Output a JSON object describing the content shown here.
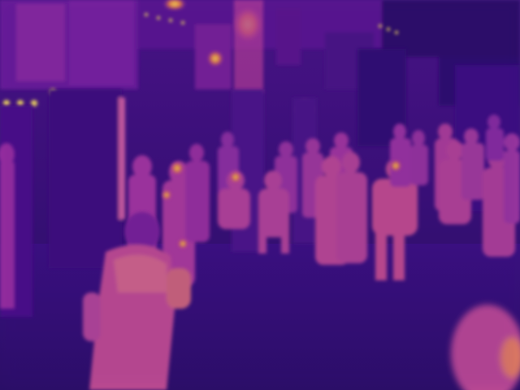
{
  "image": {
    "kind": "thermal-camera-frame",
    "colormap": "inferno",
    "palette": {
      "cold": "#1e0b57",
      "cool": "#3d1280",
      "mid": "#7a1fa0",
      "warm": "#c0439a",
      "hot": "#f0803c",
      "hottest": "#fde85a"
    }
  }
}
